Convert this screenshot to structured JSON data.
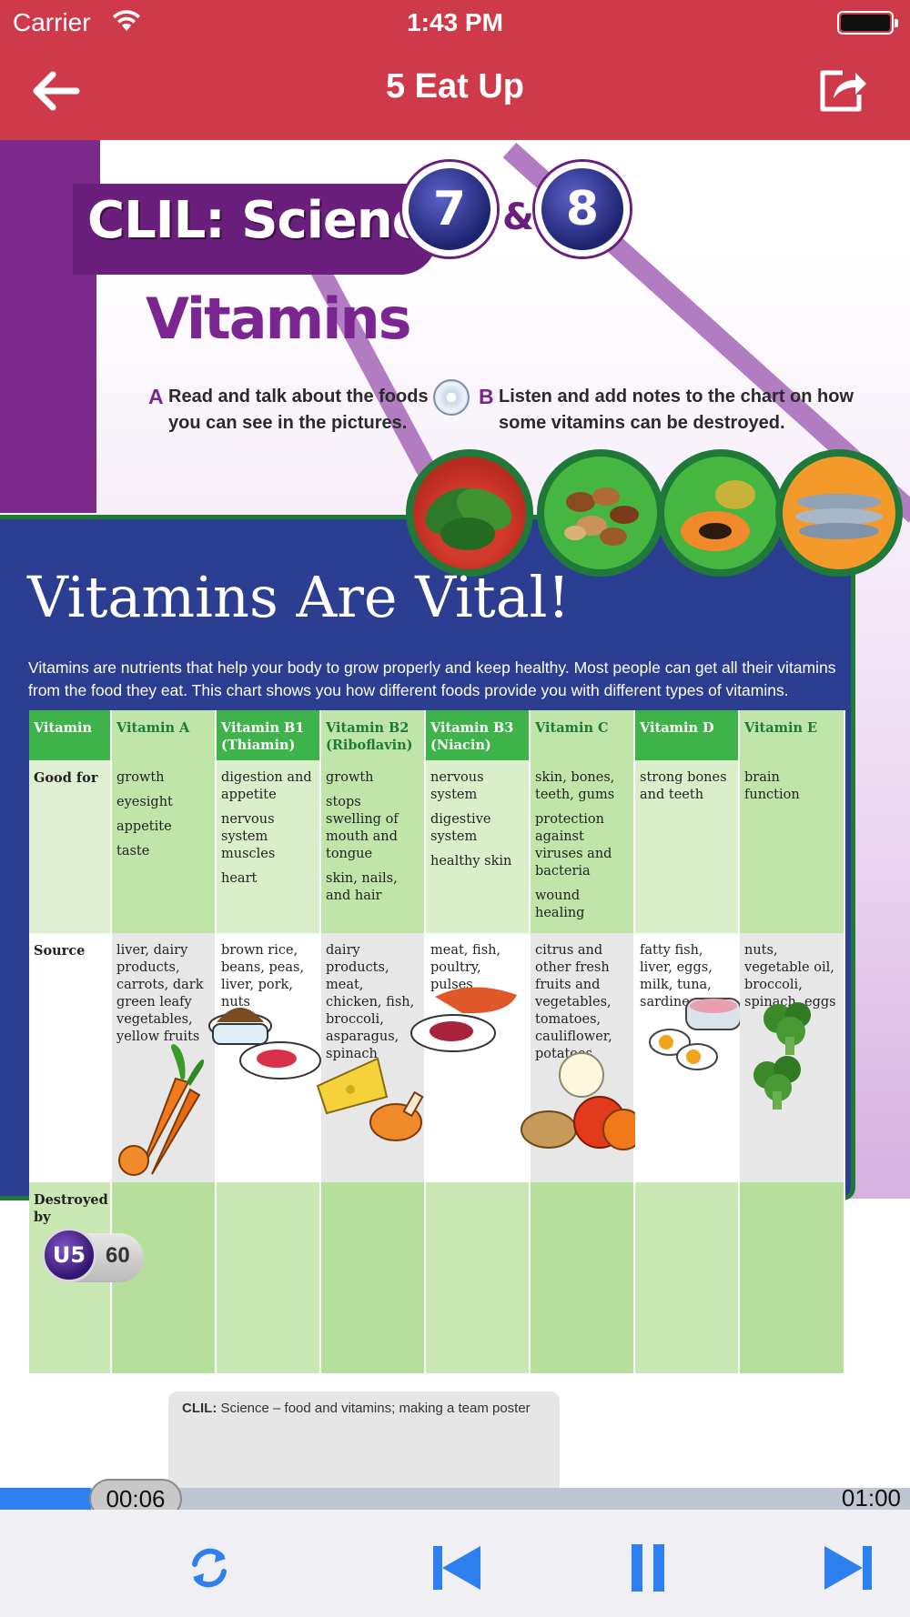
{
  "status": {
    "carrier": "Carrier",
    "time": "1:43 PM"
  },
  "nav": {
    "title": "5 Eat Up"
  },
  "page": {
    "clil": "CLIL: Science",
    "badge_left": "7",
    "amp": "&",
    "badge_right": "8",
    "heading": "Vitamins",
    "instruction_a": {
      "letter": "A",
      "line1": "Read and talk about the foods",
      "line2": "you can see in the pictures."
    },
    "instruction_b": {
      "letter": "B",
      "line1": "Listen and add notes to the chart on how",
      "line2": "some vitamins can be destroyed."
    },
    "board_title": "Vitamins Are Vital!",
    "board_desc_1": "Vitamins are nutrients that help your body to grow properly and keep healthy. Most people can get all their vitamins",
    "board_desc_2": "from the food they eat. This chart shows you how different foods provide you with different types of vitamins.",
    "table": {
      "header": [
        "Vitamin",
        "Vitamin A",
        "Vitamin B1",
        "Vitamin B2",
        "Vitamin B3",
        "Vitamin C",
        "Vitamin D",
        "Vitamin E"
      ],
      "header_sub": [
        "",
        "",
        "(Thiamin)",
        "(Riboflavin)",
        "(Niacin)",
        "",
        "",
        ""
      ],
      "good_for_label": "Good for",
      "good_for": [
        [
          "growth",
          "eyesight",
          "appetite",
          "taste"
        ],
        [
          "digestion and appetite",
          "nervous system muscles",
          "heart"
        ],
        [
          "growth",
          "stops swelling of mouth and tongue",
          "skin, nails, and hair"
        ],
        [
          "nervous system",
          "digestive system",
          "healthy skin"
        ],
        [
          "skin, bones, teeth, gums",
          "protection against viruses and bacteria",
          "wound healing"
        ],
        [
          "strong bones and teeth"
        ],
        [
          "brain function"
        ]
      ],
      "source_label": "Source",
      "source": [
        "liver, dairy products, carrots, dark green leafy vegetables, yellow fruits",
        "brown rice, beans, peas, liver, pork, nuts",
        "dairy products, meat, chicken, fish, broccoli, asparagus, spinach",
        "meat, fish, poultry, pulses",
        "citrus and other fresh fruits and vegetables, tomatoes, cauliflower, potatoes",
        "fatty fish, liver, eggs, milk, tuna, sardines",
        "nuts, vegetable oil, broccoli, spinach, eggs"
      ],
      "destroyed_label": "Destroyed by"
    },
    "unit": "U5",
    "page_number": "60",
    "caption_bold": "CLIL:",
    "caption_rest": " Science – food and vitamins; making a team poster"
  },
  "player": {
    "elapsed": "00:06",
    "duration": "01:00",
    "progress": 0.1,
    "accent": "#2e7ff0"
  },
  "colors": {
    "nav": "#cf3a4a",
    "board": "#2c3e92",
    "header_green": "#3db34a"
  },
  "icons": [
    "back-arrow-icon",
    "share-icon",
    "wifi-icon",
    "battery-icon",
    "repeat-icon",
    "skip-previous-icon",
    "pause-icon",
    "skip-next-icon"
  ]
}
